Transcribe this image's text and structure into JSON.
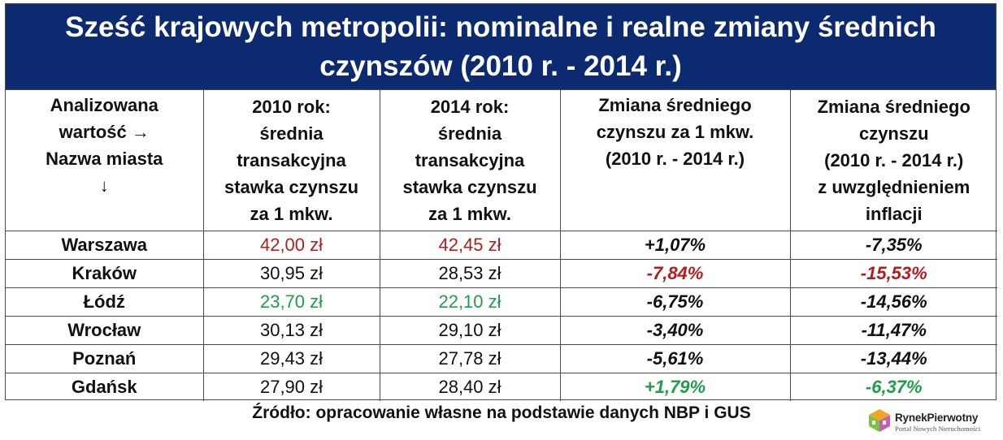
{
  "title": "Sześć krajowych metropolii: nominalne i realne zmiany średnich czynszów (2010 r. - 2014 r.)",
  "columns": [
    [
      "Analizowana",
      "wartość →",
      "Nazwa miasta",
      "↓"
    ],
    [
      "2010 rok:",
      "średnia",
      "transakcyjna",
      "stawka czynszu",
      "za 1 mkw."
    ],
    [
      "2014 rok:",
      "średnia",
      "transakcyjna",
      "stawka czynszu",
      "za 1 mkw."
    ],
    [
      "Zmiana średniego",
      "czynszu za 1 mkw.",
      "(2010 r. - 2014 r.)"
    ],
    [
      "Zmiana średniego",
      "czynszu",
      "(2010 r. - 2014 r.)",
      "z uwzględnieniem",
      "inflacji"
    ]
  ],
  "rows": [
    {
      "city": "Warszawa",
      "rent2010": "42,00 zł",
      "rent2014": "42,45 zł",
      "nominal": "+1,07%",
      "real": "-7,35%",
      "colors": {
        "rent2010": "#b11e1e",
        "rent2014": "#b11e1e",
        "nominal": "#111111",
        "real": "#111111"
      }
    },
    {
      "city": "Kraków",
      "rent2010": "30,95 zł",
      "rent2014": "28,53 zł",
      "nominal": "-7,84%",
      "real": "-15,53%",
      "colors": {
        "rent2010": "#111111",
        "rent2014": "#111111",
        "nominal": "#b11e1e",
        "real": "#b11e1e"
      }
    },
    {
      "city": "Łódź",
      "rent2010": "23,70 zł",
      "rent2014": "22,10 zł",
      "nominal": "-6,75%",
      "real": "-14,56%",
      "colors": {
        "rent2010": "#1e9e4a",
        "rent2014": "#1e9e4a",
        "nominal": "#111111",
        "real": "#111111"
      }
    },
    {
      "city": "Wrocław",
      "rent2010": "30,13 zł",
      "rent2014": "29,10 zł",
      "nominal": "-3,40%",
      "real": "-11,47%",
      "colors": {
        "rent2010": "#111111",
        "rent2014": "#111111",
        "nominal": "#111111",
        "real": "#111111"
      }
    },
    {
      "city": "Poznań",
      "rent2010": "29,43 zł",
      "rent2014": "27,78 zł",
      "nominal": "-5,61%",
      "real": "-13,44%",
      "colors": {
        "rent2010": "#111111",
        "rent2014": "#111111",
        "nominal": "#111111",
        "real": "#111111"
      }
    },
    {
      "city": "Gdańsk",
      "rent2010": "27,90 zł",
      "rent2014": "28,40 zł",
      "nominal": "+1,79%",
      "real": "-6,37%",
      "colors": {
        "rent2010": "#111111",
        "rent2014": "#111111",
        "nominal": "#1e9e4a",
        "real": "#1e9e4a"
      }
    }
  ],
  "source": "Źródło: opracowanie własne na podstawie danych NBP i GUS",
  "logo": {
    "brand": "RynekPierwotny",
    "tagline": "Portal Nowych Nieruchomości",
    "icon": "house-cube-logo-icon"
  },
  "colors": {
    "title_bg": "#0b2a6f",
    "negative_highlight": "#b11e1e",
    "positive_highlight": "#1e9e4a"
  }
}
